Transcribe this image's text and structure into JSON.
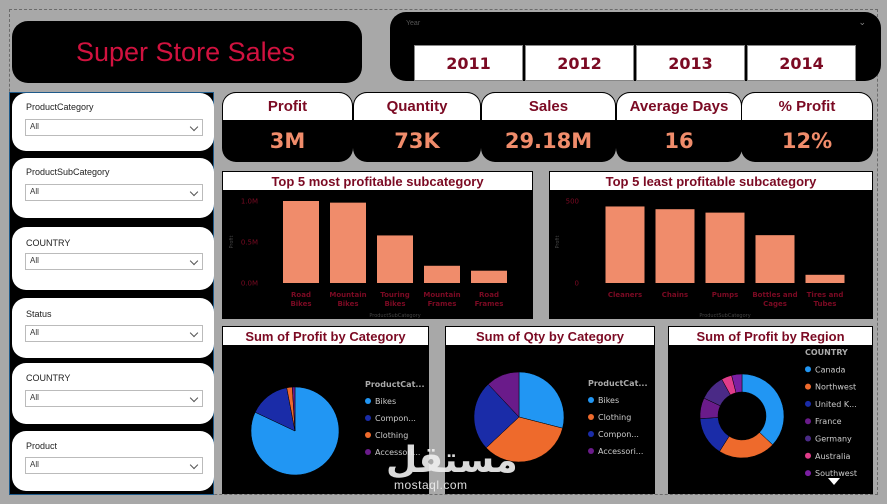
{
  "header": {
    "title": "Super Store Sales"
  },
  "year_slicer": {
    "caption": "Year",
    "years": [
      "2011",
      "2012",
      "2013",
      "2014"
    ]
  },
  "slicers": [
    {
      "label": "ProductCategory",
      "value": "All"
    },
    {
      "label": "ProductSubCategory",
      "value": "All"
    },
    {
      "label": "COUNTRY",
      "value": "All"
    },
    {
      "label": "Status",
      "value": "All"
    },
    {
      "label": "COUNTRY",
      "value": "All"
    },
    {
      "label": "Product",
      "value": "All"
    }
  ],
  "kpis": [
    {
      "label": "Profit",
      "value": "3M"
    },
    {
      "label": "Quantity",
      "value": "73K"
    },
    {
      "label": "Sales",
      "value": "29.18M"
    },
    {
      "label": "Average Days",
      "value": "16"
    },
    {
      "label": "% Profit",
      "value": "12%"
    }
  ],
  "colors": {
    "accent": "#7b0a23",
    "title_red": "#d1123f",
    "kpi_value": "#f08c6b",
    "bar": "#f08c6b",
    "pie_blue": "#2196f3",
    "pie_orange": "#ee6a2c",
    "pie_navy": "#1a2ca8",
    "pie_purple": "#6a1b8a"
  },
  "chart_data": [
    {
      "type": "bar",
      "title": "Top 5 most profitable subcategory",
      "xlabel": "ProductSubCategory",
      "ylabel": "Profit",
      "categories": [
        "Road Bikes",
        "Mountain Bikes",
        "Touring Bikes",
        "Mountain Frames",
        "Road Frames"
      ],
      "values": [
        1000000,
        980000,
        580000,
        210000,
        150000
      ],
      "ylim": [
        0,
        1000000
      ],
      "ticks": [
        "0.0M",
        "0.5M",
        "1.0M"
      ]
    },
    {
      "type": "bar",
      "title": "Top 5 least profitable subcategory",
      "xlabel": "ProductSubCategory",
      "ylabel": "Profit",
      "categories": [
        "Cleaners",
        "Chains",
        "Pumps",
        "Bottles and Cages",
        "Tires and Tubes"
      ],
      "values": [
        560,
        540,
        515,
        350,
        60
      ],
      "ylim": [
        0,
        600
      ],
      "ticks": [
        "0",
        "500"
      ]
    },
    {
      "type": "pie",
      "title": "Sum of Profit by Category",
      "legend_title": "ProductCat...",
      "labels": [
        "Bikes",
        "Compon...",
        "Clothing",
        "Accessori..."
      ],
      "values": [
        82,
        15,
        2,
        1
      ]
    },
    {
      "type": "pie",
      "title": "Sum of Qty by Category",
      "legend_title": "ProductCat...",
      "labels": [
        "Bikes",
        "Clothing",
        "Compon...",
        "Accessori..."
      ],
      "values": [
        29,
        34,
        25,
        12
      ]
    },
    {
      "type": "pie",
      "title": "Sum of Profit by Region",
      "legend_title": "COUNTRY",
      "labels": [
        "Canada",
        "Northwest",
        "United K...",
        "France",
        "Germany",
        "Australia",
        "Southwest"
      ],
      "values": [
        37,
        22,
        15,
        8,
        10,
        4,
        4
      ]
    }
  ],
  "watermark": {
    "arabic": "مستقل",
    "latin": "mostaql.com"
  }
}
